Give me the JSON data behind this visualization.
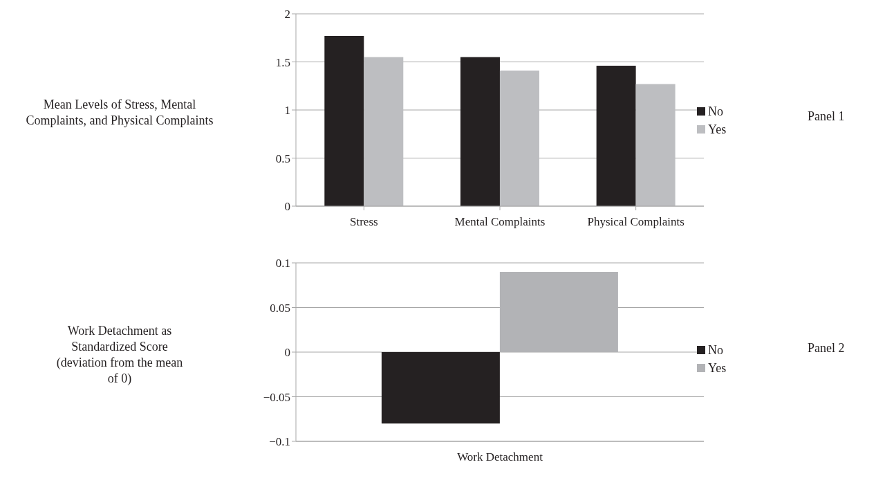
{
  "chart_data": [
    {
      "type": "bar",
      "ylabel": "Mean Levels of Stress, Mental Complaints, and Physical Complaints",
      "categories": [
        "Stress",
        "Mental Complaints",
        "Physical Complaints"
      ],
      "series": [
        {
          "name": "No",
          "color": "#252122",
          "values": [
            1.77,
            1.55,
            1.46
          ]
        },
        {
          "name": "Yes",
          "color": "#bdbec1",
          "values": [
            1.55,
            1.41,
            1.27
          ]
        }
      ],
      "ylim": [
        0,
        2
      ],
      "yticks": [
        0,
        0.5,
        1,
        1.5,
        2
      ],
      "grid": "y",
      "legend": "right",
      "annotations": [
        "Panel 1"
      ]
    },
    {
      "type": "bar",
      "ylabel": "Work Detachment as Standardized Score (deviation from the mean of 0)",
      "categories": [
        "Work Detachment"
      ],
      "series": [
        {
          "name": "No",
          "color": "#252122",
          "values": [
            -0.08
          ]
        },
        {
          "name": "Yes",
          "color": "#b2b3b6",
          "values": [
            0.09
          ]
        }
      ],
      "ylim": [
        -0.1,
        0.1
      ],
      "yticks": [
        {
          "value": -0.1,
          "label": "−0.1"
        },
        {
          "value": -0.05,
          "label": "−0.05"
        },
        0,
        0.05,
        0.1
      ],
      "grid": "y",
      "legend": "right",
      "annotations": [
        "Panel 2"
      ]
    }
  ]
}
